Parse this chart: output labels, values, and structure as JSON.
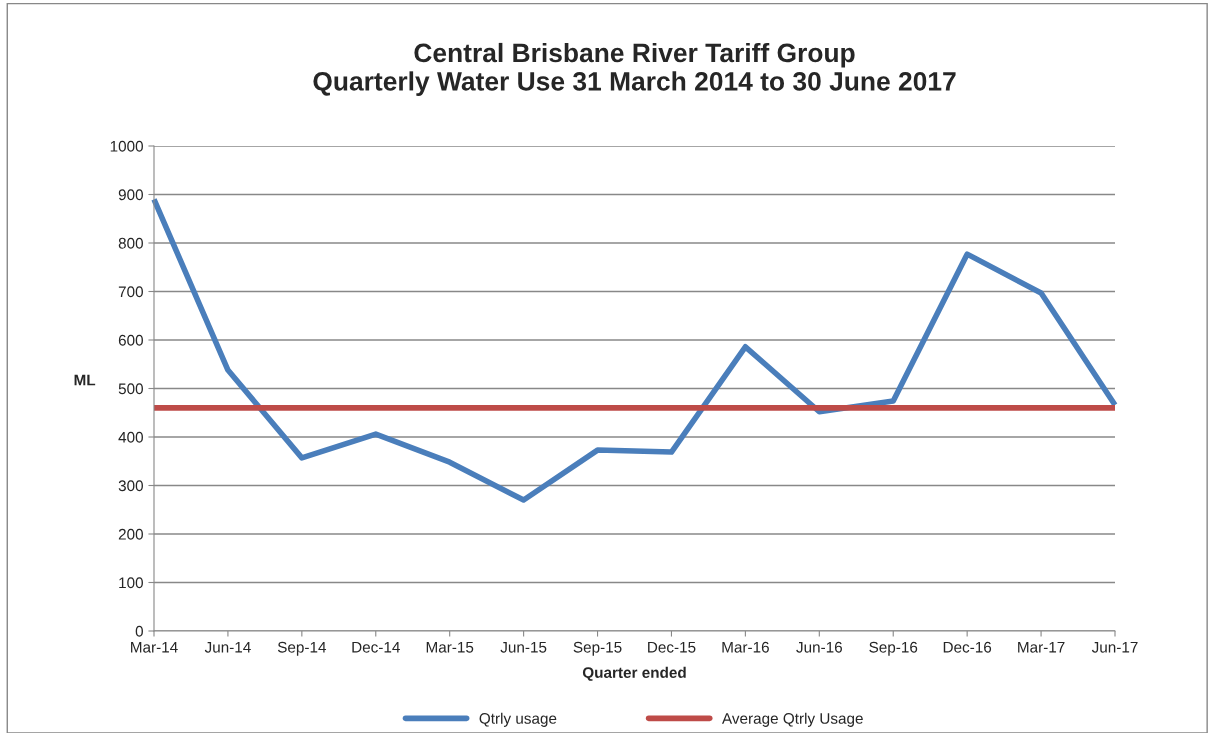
{
  "chart_data": {
    "type": "line",
    "title": "Central Brisbane River Tariff Group\nQuarterly Water Use 31 March 2014 to 30 June 2017",
    "xlabel": "Quarter ended",
    "ylabel": "ML",
    "categories": [
      "Mar-14",
      "Jun-14",
      "Sep-14",
      "Dec-14",
      "Mar-15",
      "Jun-15",
      "Sep-15",
      "Dec-15",
      "Mar-16",
      "Jun-16",
      "Sep-16",
      "Dec-16",
      "Mar-17",
      "Jun-17"
    ],
    "series": [
      {
        "name": "Qtrly usage",
        "color": "#4a7ebb",
        "values": [
          890,
          538,
          357,
          406,
          348,
          270,
          373,
          369,
          586,
          452,
          474,
          777,
          697,
          466
        ]
      },
      {
        "name": "Average Qtrly Usage",
        "color": "#be4b48",
        "values": [
          460,
          460,
          460,
          460,
          460,
          460,
          460,
          460,
          460,
          460,
          460,
          460,
          460,
          460
        ]
      }
    ],
    "ylim": [
      0,
      1000
    ],
    "yticks": [
      0,
      100,
      200,
      300,
      400,
      500,
      600,
      700,
      800,
      900,
      1000
    ],
    "grid": "y",
    "legend": "bottom",
    "marker": "none",
    "line_style": "solid"
  }
}
